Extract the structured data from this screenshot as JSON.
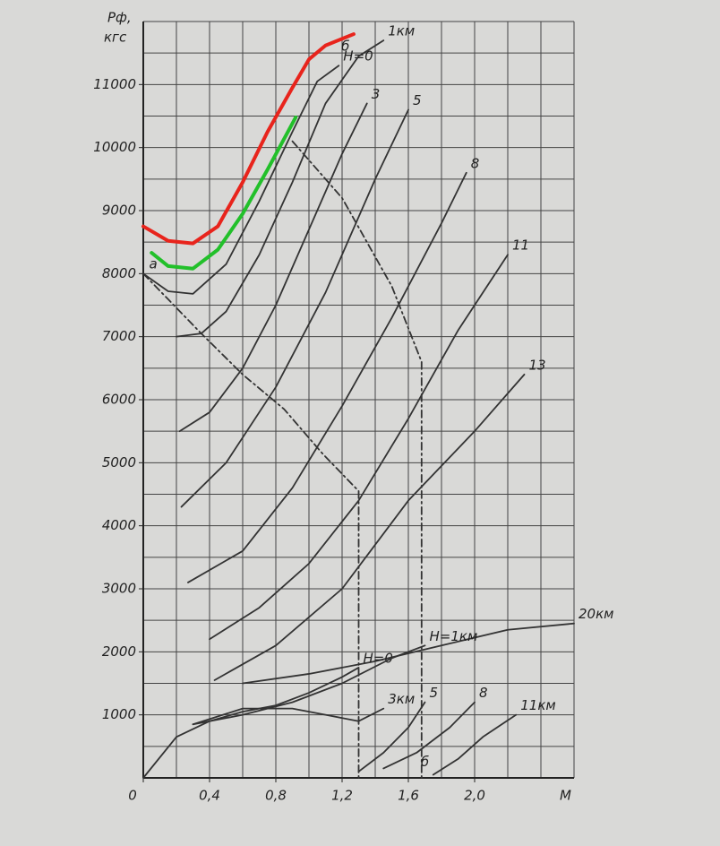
{
  "chart_data": {
    "type": "line",
    "ylabel": "Pф,",
    "yunit": "кгс",
    "xlabel": "M",
    "xlim": [
      0,
      2.6
    ],
    "ylim": [
      0,
      12000
    ],
    "xticks": [
      {
        "value": 0,
        "label": "0"
      },
      {
        "value": 0.4,
        "label": "0,4"
      },
      {
        "value": 0.8,
        "label": "0,8"
      },
      {
        "value": 1.2,
        "label": "1,2"
      },
      {
        "value": 1.6,
        "label": "1,6"
      },
      {
        "value": 2.0,
        "label": "2,0"
      }
    ],
    "yticks": [
      1000,
      2000,
      3000,
      4000,
      5000,
      6000,
      7000,
      8000,
      9000,
      10000,
      11000
    ],
    "grid": true,
    "x_grid_step": 0.2,
    "y_grid_step": 500,
    "series": [
      {
        "color": "#e8241c",
        "x": [
          0,
          0.15,
          0.3,
          0.45,
          0.6,
          0.75,
          0.9,
          1.0,
          1.1,
          1.27
        ],
        "values": [
          8750,
          8520,
          8480,
          8750,
          9450,
          10250,
          10950,
          11400,
          11620,
          11800
        ]
      },
      {
        "color": "#22c02a",
        "x": [
          0.05,
          0.15,
          0.3,
          0.45,
          0.6,
          0.75,
          0.92
        ],
        "values": [
          8330,
          8120,
          8080,
          8380,
          8950,
          9650,
          10480
        ]
      },
      {
        "name": "H=0",
        "color": "#333333",
        "x": [
          0,
          0.15,
          0.3,
          0.5,
          0.7,
          0.9,
          1.05,
          1.18
        ],
        "values": [
          8000,
          7720,
          7680,
          8150,
          9150,
          10250,
          11050,
          11300
        ]
      },
      {
        "name": "1км",
        "color": "#333333",
        "x": [
          0.2,
          0.35,
          0.5,
          0.7,
          0.9,
          1.1,
          1.3,
          1.45
        ],
        "values": [
          7000,
          7050,
          7400,
          8300,
          9450,
          10700,
          11450,
          11700
        ]
      },
      {
        "name": "3",
        "color": "#333333",
        "x": [
          0.22,
          0.4,
          0.6,
          0.8,
          1.0,
          1.2,
          1.35
        ],
        "values": [
          5500,
          5800,
          6500,
          7500,
          8700,
          9900,
          10700
        ]
      },
      {
        "name": "5",
        "color": "#333333",
        "x": [
          0.23,
          0.5,
          0.8,
          1.1,
          1.4,
          1.6
        ],
        "values": [
          4300,
          5000,
          6200,
          7700,
          9500,
          10600
        ]
      },
      {
        "name": "8",
        "color": "#333333",
        "x": [
          0.27,
          0.6,
          0.9,
          1.2,
          1.5,
          1.8,
          1.95
        ],
        "values": [
          3100,
          3600,
          4600,
          5900,
          7300,
          8800,
          9600
        ]
      },
      {
        "name": "11",
        "color": "#333333",
        "x": [
          0.4,
          0.7,
          1.0,
          1.3,
          1.6,
          1.9,
          2.2
        ],
        "values": [
          2200,
          2700,
          3400,
          4400,
          5700,
          7100,
          8300
        ]
      },
      {
        "name": "13",
        "color": "#333333",
        "x": [
          0.43,
          0.8,
          1.2,
          1.6,
          2.0,
          2.3
        ],
        "values": [
          1550,
          2100,
          3000,
          4400,
          5500,
          6400
        ]
      },
      {
        "name": "20км",
        "color": "#333333",
        "x": [
          0.6,
          1.0,
          1.4,
          1.8,
          2.2,
          2.6
        ],
        "values": [
          1500,
          1650,
          1850,
          2100,
          2350,
          2450
        ]
      },
      {
        "name": "H=0",
        "color": "#333333",
        "x": [
          0,
          0.2,
          0.4,
          0.6,
          0.8,
          1.0,
          1.2,
          1.3
        ],
        "values": [
          0,
          650,
          900,
          1050,
          1150,
          1350,
          1600,
          1750
        ]
      },
      {
        "name": "H=1км",
        "color": "#333333",
        "x": [
          0.3,
          0.6,
          0.9,
          1.2,
          1.5,
          1.7
        ],
        "values": [
          850,
          1000,
          1200,
          1500,
          1900,
          2100
        ]
      },
      {
        "name": "3км",
        "color": "#333333",
        "x": [
          0.3,
          0.6,
          0.9,
          1.1,
          1.3,
          1.45
        ],
        "values": [
          850,
          1100,
          1100,
          1000,
          900,
          1100
        ]
      },
      {
        "name": "5",
        "color": "#333333",
        "x": [
          1.3,
          1.45,
          1.6,
          1.7
        ],
        "values": [
          100,
          400,
          800,
          1200
        ]
      },
      {
        "name": "8",
        "color": "#333333",
        "x": [
          1.45,
          1.65,
          1.85,
          2.0
        ],
        "values": [
          150,
          400,
          800,
          1200
        ]
      },
      {
        "name": "11км",
        "color": "#333333",
        "x": [
          1.75,
          1.9,
          2.05,
          2.25
        ],
        "values": [
          50,
          300,
          650,
          1000
        ]
      },
      {
        "color": "#333333",
        "dash": "8 4 2 4",
        "x": [
          0,
          0.35,
          0.6,
          0.85,
          1.08,
          1.3,
          1.3
        ],
        "values": [
          8000,
          7050,
          6400,
          5850,
          5150,
          4550,
          0
        ]
      },
      {
        "color": "#333333",
        "dash": "8 4 2 4",
        "x": [
          0.9,
          1.2,
          1.5,
          1.68,
          1.68
        ],
        "values": [
          10100,
          9200,
          7800,
          6600,
          0
        ]
      }
    ],
    "annotations": [
      {
        "text": "a",
        "x": 0.06,
        "y": 8150
      },
      {
        "text": "б",
        "x": 1.22,
        "y": 11600
      },
      {
        "text": "б",
        "x": 1.7,
        "y": 250
      }
    ]
  }
}
